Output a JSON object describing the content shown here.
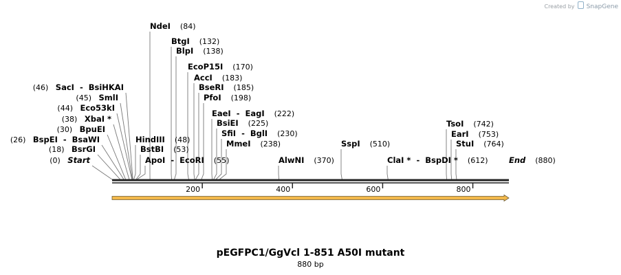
{
  "credit": {
    "prefix": "Created by",
    "brand": "SnapGene"
  },
  "plasmid": {
    "name": "pEGFPC1/GgVcl 1-851 A50I mutant",
    "length_label": "880 bp",
    "length": 880
  },
  "axis": {
    "ticks": [
      200,
      400,
      600,
      800
    ]
  },
  "feature": {
    "start": 0,
    "end": 880,
    "direction": "forward",
    "color": "#f2b84b"
  },
  "site_labels": [
    {
      "id": "start",
      "text": "Start",
      "num": "(0)",
      "pos": 0,
      "italic": true,
      "side": "left"
    },
    {
      "id": "bsrgi",
      "text": "BsrGI",
      "num": "(18)",
      "pos": 18,
      "side": "left"
    },
    {
      "id": "bspei-bsawi",
      "text": "BspEI  -  BsaWI",
      "num": "(26)",
      "pos": 26,
      "side": "left"
    },
    {
      "id": "bpuei",
      "text": "BpuEI",
      "num": "(30)",
      "pos": 30,
      "side": "left"
    },
    {
      "id": "xbai",
      "text": "XbaI *",
      "num": "(38)",
      "pos": 38,
      "side": "left"
    },
    {
      "id": "eco53ki",
      "text": "Eco53kI",
      "num": "(44)",
      "pos": 44,
      "side": "left"
    },
    {
      "id": "smli",
      "text": "SmlI",
      "num": "(45)",
      "pos": 45,
      "side": "left"
    },
    {
      "id": "saci-bsihkai",
      "text": "SacI  -  BsiHKAI",
      "num": "(46)",
      "pos": 46,
      "side": "left"
    },
    {
      "id": "hindiii",
      "text": "HindIII",
      "num": "(48)",
      "pos": 48,
      "side": "right"
    },
    {
      "id": "bstbi",
      "text": "BstBI",
      "num": "(53)",
      "pos": 53,
      "side": "right"
    },
    {
      "id": "apoi-ecori",
      "text": "ApoI  -  EcoRI",
      "num": "(55)",
      "pos": 55,
      "side": "right"
    },
    {
      "id": "ndei",
      "text": "NdeI",
      "num": "(84)",
      "pos": 84,
      "side": "right"
    },
    {
      "id": "btgi",
      "text": "BtgI",
      "num": "(132)",
      "pos": 132,
      "side": "right"
    },
    {
      "id": "blpi",
      "text": "BlpI",
      "num": "(138)",
      "pos": 138,
      "side": "right"
    },
    {
      "id": "ecop15i",
      "text": "EcoP15I",
      "num": "(170)",
      "pos": 170,
      "side": "right"
    },
    {
      "id": "acci",
      "text": "AccI",
      "num": "(183)",
      "pos": 183,
      "side": "right"
    },
    {
      "id": "bseri",
      "text": "BseRI",
      "num": "(185)",
      "pos": 185,
      "side": "right"
    },
    {
      "id": "pfoi",
      "text": "PfoI",
      "num": "(198)",
      "pos": 198,
      "side": "right"
    },
    {
      "id": "eaei-eagi",
      "text": "EaeI  -  EagI",
      "num": "(222)",
      "pos": 222,
      "side": "right"
    },
    {
      "id": "bsiei",
      "text": "BsiEI",
      "num": "(225)",
      "pos": 225,
      "side": "right"
    },
    {
      "id": "sfii-bgli",
      "text": "SfiI  -  BglI",
      "num": "(230)",
      "pos": 230,
      "side": "right"
    },
    {
      "id": "mmei",
      "text": "MmeI",
      "num": "(238)",
      "pos": 238,
      "side": "right"
    },
    {
      "id": "alwni",
      "text": "AlwNI",
      "num": "(370)",
      "pos": 370,
      "side": "right"
    },
    {
      "id": "sspi",
      "text": "SspI",
      "num": "(510)",
      "pos": 510,
      "side": "right"
    },
    {
      "id": "clai-bspdi",
      "text": "ClaI *  -  BspDI *",
      "num": "(612)",
      "pos": 612,
      "side": "right"
    },
    {
      "id": "tsoi",
      "text": "TsoI",
      "num": "(742)",
      "pos": 742,
      "side": "right"
    },
    {
      "id": "eari",
      "text": "EarI",
      "num": "(753)",
      "pos": 753,
      "side": "right"
    },
    {
      "id": "stui",
      "text": "StuI",
      "num": "(764)",
      "pos": 764,
      "side": "right"
    },
    {
      "id": "end",
      "text": "End",
      "num": "(880)",
      "pos": 880,
      "italic": true,
      "side": "right"
    }
  ]
}
